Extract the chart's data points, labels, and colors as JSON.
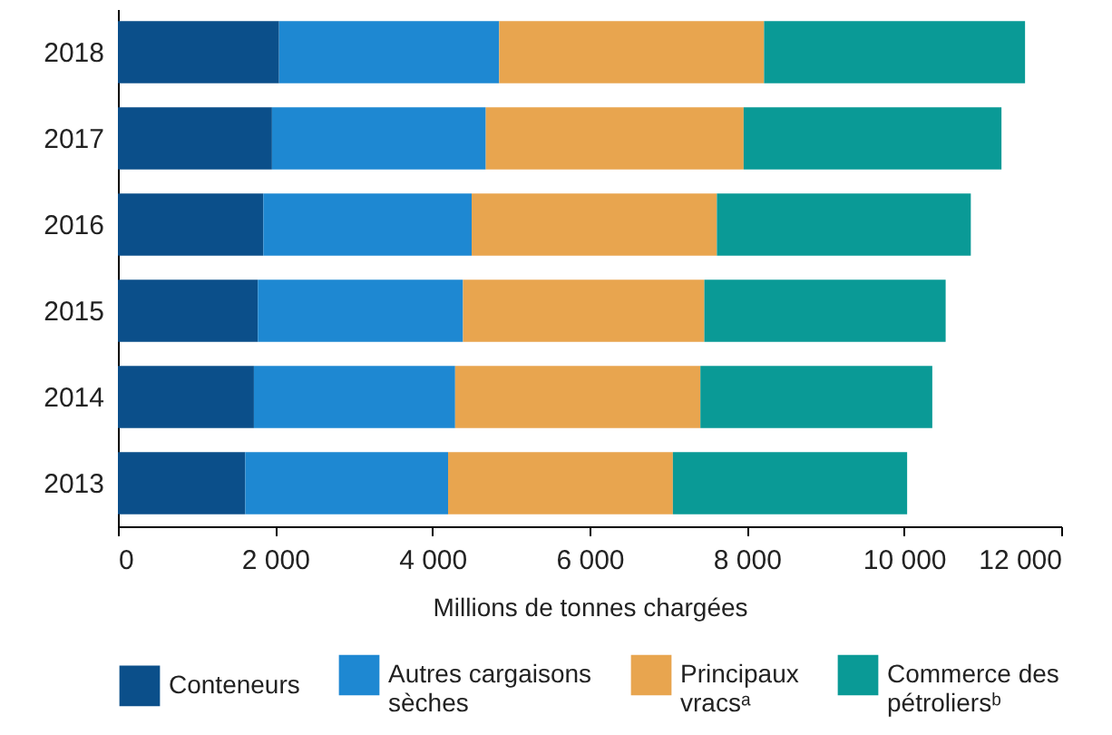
{
  "chart_data": {
    "type": "bar",
    "orientation": "horizontal",
    "stacked": true,
    "categories": [
      "2018",
      "2017",
      "2016",
      "2015",
      "2014",
      "2013"
    ],
    "xlabel": "Millions de tonnes chargées",
    "xlim": [
      0,
      12000
    ],
    "xticks": [
      0,
      {
        "value": 2000,
        "label": "2 000"
      },
      {
        "value": 4000,
        "label": "4 000"
      },
      {
        "value": 6000,
        "label": "6 000"
      },
      {
        "value": 8000,
        "label": "8 000"
      },
      {
        "value": 10000,
        "label": "10 000"
      },
      {
        "value": 12000,
        "label": "12 000"
      }
    ],
    "series": [
      {
        "name": "Conteneurs",
        "color": "#0b4f8a",
        "values": [
          2050,
          1960,
          1850,
          1780,
          1730,
          1620
        ]
      },
      {
        "name": "Autres cargaisons sèches",
        "color": "#1e88d2",
        "values": [
          2800,
          2720,
          2650,
          2610,
          2560,
          2580
        ]
      },
      {
        "name": "Principaux vracsᵃ",
        "color": "#e8a54f",
        "values": [
          3370,
          3280,
          3120,
          3070,
          3120,
          2860
        ]
      },
      {
        "name": "Commerce des pétroliersᵇ",
        "color": "#0a9a96",
        "values": [
          3320,
          3280,
          3230,
          3070,
          2950,
          2980
        ]
      }
    ],
    "grid": false,
    "legend": "bottom"
  }
}
